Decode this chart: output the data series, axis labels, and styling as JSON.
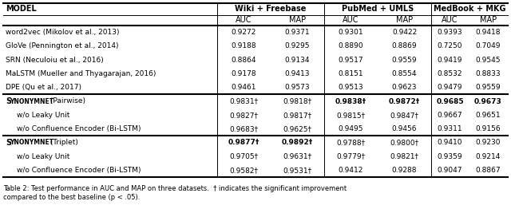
{
  "col_headers_top": [
    "Wiki + Freebase",
    "PubMed + UMLS",
    "MedBook + MKG"
  ],
  "col_headers_sub": [
    "AUC",
    "MAP",
    "AUC",
    "MAP",
    "AUC",
    "MAP"
  ],
  "rows": [
    {
      "model": "word2vec (Mikolov et al., 2013)",
      "bold_model": false,
      "smallcaps": false,
      "indent": false,
      "values": [
        "0.9272",
        "0.9371",
        "0.9301",
        "0.9422",
        "0.9393",
        "0.9418"
      ],
      "bold": [
        false,
        false,
        false,
        false,
        false,
        false
      ],
      "dagger": [
        false,
        false,
        false,
        false,
        false,
        false
      ]
    },
    {
      "model": "GloVe (Pennington et al., 2014)",
      "bold_model": false,
      "smallcaps": false,
      "indent": false,
      "values": [
        "0.9188",
        "0.9295",
        "0.8890",
        "0.8869",
        "0.7250",
        "0.7049"
      ],
      "bold": [
        false,
        false,
        false,
        false,
        false,
        false
      ],
      "dagger": [
        false,
        false,
        false,
        false,
        false,
        false
      ]
    },
    {
      "model": "SRN (Neculoiu et al., 2016)",
      "bold_model": false,
      "smallcaps": false,
      "indent": false,
      "values": [
        "0.8864",
        "0.9134",
        "0.9517",
        "0.9559",
        "0.9419",
        "0.9545"
      ],
      "bold": [
        false,
        false,
        false,
        false,
        false,
        false
      ],
      "dagger": [
        false,
        false,
        false,
        false,
        false,
        false
      ]
    },
    {
      "model": "MaLSTM (Mueller and Thyagarajan, 2016)",
      "bold_model": false,
      "smallcaps": false,
      "indent": false,
      "values": [
        "0.9178",
        "0.9413",
        "0.8151",
        "0.8554",
        "0.8532",
        "0.8833"
      ],
      "bold": [
        false,
        false,
        false,
        false,
        false,
        false
      ],
      "dagger": [
        false,
        false,
        false,
        false,
        false,
        false
      ]
    },
    {
      "model": "DPE (Qu et al., 2017)",
      "bold_model": false,
      "smallcaps": false,
      "indent": false,
      "values": [
        "0.9461",
        "0.9573",
        "0.9513",
        "0.9623",
        "0.9479",
        "0.9559"
      ],
      "bold": [
        false,
        false,
        false,
        false,
        false,
        false
      ],
      "dagger": [
        false,
        false,
        false,
        false,
        false,
        false
      ]
    },
    {
      "model": "SynonymNet (Pairwise)",
      "bold_model": true,
      "smallcaps": true,
      "indent": false,
      "values": [
        "0.9831",
        "0.9818",
        "0.9838",
        "0.9872",
        "0.9685",
        "0.9673"
      ],
      "bold": [
        false,
        false,
        true,
        true,
        true,
        true
      ],
      "dagger": [
        true,
        true,
        true,
        true,
        false,
        false
      ]
    },
    {
      "model": "w/o Leaky Unit",
      "bold_model": false,
      "smallcaps": false,
      "indent": true,
      "values": [
        "0.9827",
        "0.9817",
        "0.9815",
        "0.9847",
        "0.9667",
        "0.9651"
      ],
      "bold": [
        false,
        false,
        false,
        false,
        false,
        false
      ],
      "dagger": [
        true,
        true,
        true,
        true,
        false,
        false
      ]
    },
    {
      "model": "w/o Confluence Encoder (Bi-LSTM)",
      "bold_model": false,
      "smallcaps": false,
      "indent": true,
      "values": [
        "0.9683",
        "0.9625",
        "0.9495",
        "0.9456",
        "0.9311",
        "0.9156"
      ],
      "bold": [
        false,
        false,
        false,
        false,
        false,
        false
      ],
      "dagger": [
        true,
        true,
        false,
        false,
        false,
        false
      ]
    },
    {
      "model": "SynonymNet (Triplet)",
      "bold_model": true,
      "smallcaps": true,
      "indent": false,
      "values": [
        "0.9877",
        "0.9892",
        "0.9788",
        "0.9800",
        "0.9410",
        "0.9230"
      ],
      "bold": [
        true,
        true,
        false,
        false,
        false,
        false
      ],
      "dagger": [
        true,
        true,
        true,
        true,
        false,
        false
      ]
    },
    {
      "model": "w/o Leaky Unit",
      "bold_model": false,
      "smallcaps": false,
      "indent": true,
      "values": [
        "0.9705",
        "0.9631",
        "0.9779",
        "0.9821",
        "0.9359",
        "0.9214"
      ],
      "bold": [
        false,
        false,
        false,
        false,
        false,
        false
      ],
      "dagger": [
        true,
        true,
        true,
        true,
        false,
        false
      ]
    },
    {
      "model": "w/o Confluence Encoder (Bi-LSTM)",
      "bold_model": false,
      "smallcaps": false,
      "indent": true,
      "values": [
        "0.9582",
        "0.9531",
        "0.9412",
        "0.9288",
        "0.9047",
        "0.8867"
      ],
      "bold": [
        false,
        false,
        false,
        false,
        false,
        false
      ],
      "dagger": [
        true,
        true,
        false,
        false,
        false,
        false
      ]
    }
  ],
  "caption": "Table 2: Test performance in AUC and MAP on three datasets.  † indicates the significant improvement",
  "caption2": "compared to the best baseline (p < .05).",
  "section_dividers": [
    5,
    8
  ],
  "bg_color": "#ffffff",
  "text_color": "#000000",
  "figsize": [
    6.4,
    2.57
  ],
  "dpi": 100
}
